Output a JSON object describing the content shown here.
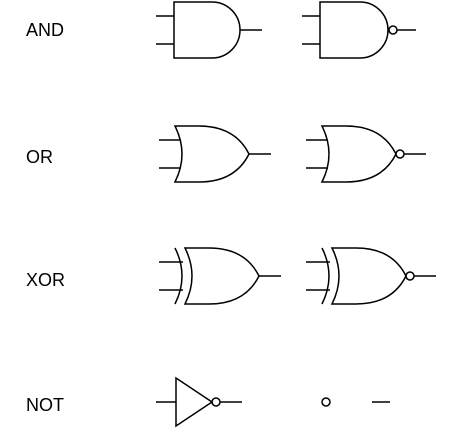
{
  "gates": [
    {
      "label": "AND",
      "symbols": [
        {
          "kind": "and-gate-icon"
        },
        {
          "kind": "nand-gate-icon"
        }
      ]
    },
    {
      "label": "OR",
      "symbols": [
        {
          "kind": "or-gate-icon"
        },
        {
          "kind": "nor-gate-icon"
        }
      ]
    },
    {
      "label": "XOR",
      "symbols": [
        {
          "kind": "xor-gate-icon"
        },
        {
          "kind": "xnor-gate-icon"
        }
      ]
    },
    {
      "label": "NOT",
      "symbols": [
        {
          "kind": "not-gate-icon"
        },
        {
          "kind": "inversion-bubble-and-wire-icon"
        }
      ]
    }
  ],
  "colors": {
    "stroke": "#000000",
    "background": "#ffffff"
  }
}
